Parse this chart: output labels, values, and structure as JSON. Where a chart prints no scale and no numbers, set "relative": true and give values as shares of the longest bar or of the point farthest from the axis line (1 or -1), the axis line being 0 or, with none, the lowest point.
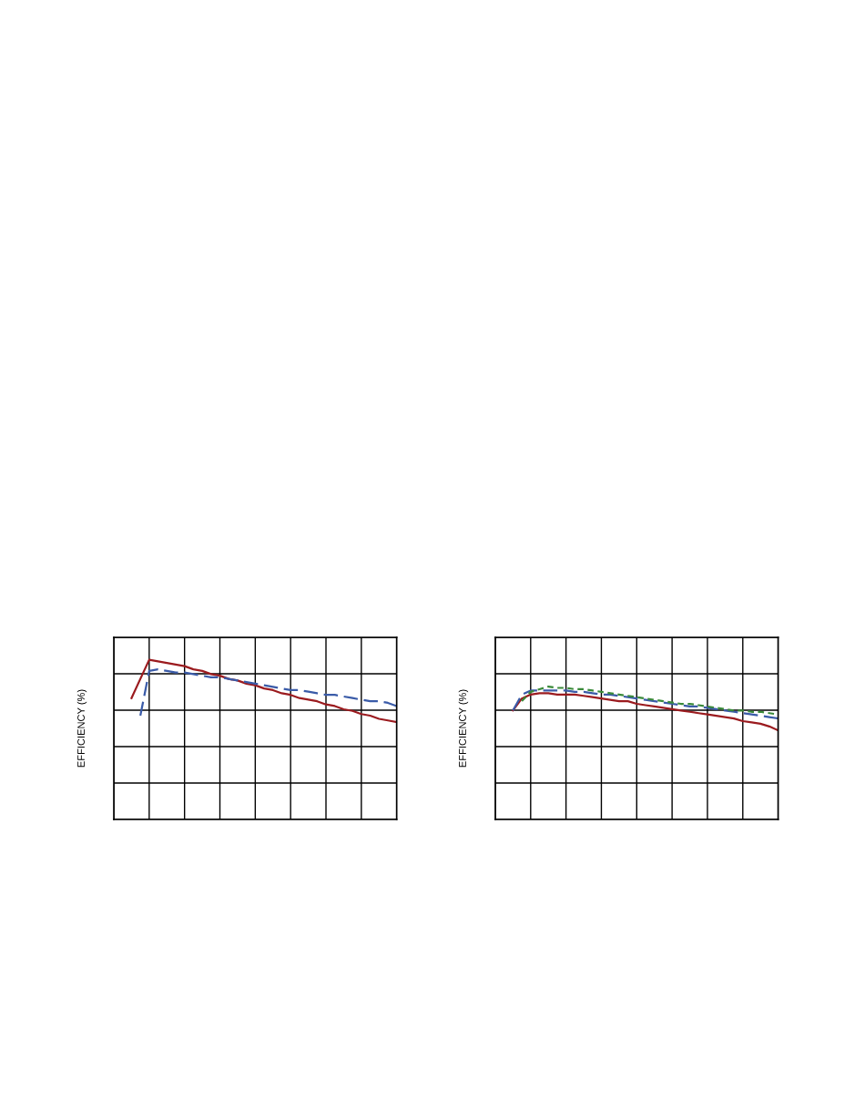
{
  "chart_data": [
    {
      "type": "line",
      "ylabel": "EFFICIENCY (%)",
      "relative": true,
      "grid": true,
      "marker": "none",
      "categories": [
        null,
        null,
        null,
        null,
        null,
        null,
        null,
        null,
        null,
        null,
        null,
        null,
        null,
        null,
        null,
        null,
        null,
        null,
        null,
        null,
        null,
        null,
        null,
        null,
        null,
        null,
        null,
        null,
        null,
        null,
        null,
        null,
        null
      ],
      "series": [
        {
          "color": "#9b1b1f",
          "line_style": "solid",
          "values": [
            null,
            null,
            0.76,
            0.88,
            1.0,
            0.99,
            0.98,
            0.97,
            0.96,
            0.94,
            0.93,
            0.91,
            0.9,
            0.88,
            0.87,
            0.85,
            0.84,
            0.82,
            0.81,
            0.79,
            0.78,
            0.76,
            0.75,
            0.74,
            0.72,
            0.71,
            0.69,
            0.68,
            0.66,
            0.65,
            0.63,
            0.62,
            0.61
          ]
        },
        {
          "color": "#3a5ba8",
          "line_style": "dashed",
          "values": [
            null,
            null,
            null,
            0.65,
            0.93,
            0.94,
            0.93,
            0.92,
            0.92,
            0.91,
            0.9,
            0.89,
            0.89,
            0.88,
            0.87,
            0.86,
            0.85,
            0.84,
            0.83,
            0.82,
            0.81,
            0.81,
            0.8,
            0.79,
            0.78,
            0.78,
            0.77,
            0.76,
            0.75,
            0.74,
            0.74,
            0.73,
            0.71
          ]
        }
      ]
    },
    {
      "type": "line",
      "ylabel": "EFFICIENCY (%)",
      "relative": true,
      "grid": true,
      "marker": "none",
      "categories": [
        null,
        null,
        null,
        null,
        null,
        null,
        null,
        null,
        null,
        null,
        null,
        null,
        null,
        null,
        null,
        null,
        null,
        null,
        null,
        null,
        null,
        null,
        null,
        null,
        null,
        null,
        null,
        null,
        null,
        null,
        null,
        null,
        null
      ],
      "series": [
        {
          "color": "#9b1b1f",
          "line_style": "solid",
          "values": [
            null,
            null,
            0.82,
            0.91,
            0.94,
            0.95,
            0.95,
            0.94,
            0.94,
            0.94,
            0.93,
            0.92,
            0.91,
            0.9,
            0.89,
            0.89,
            0.87,
            0.86,
            0.85,
            0.84,
            0.83,
            0.82,
            0.81,
            0.8,
            0.79,
            0.78,
            0.77,
            0.76,
            0.74,
            0.73,
            0.72,
            0.7,
            0.67
          ]
        },
        {
          "color": "#3a5ba8",
          "line_style": "dashed",
          "values": [
            null,
            null,
            0.82,
            0.94,
            0.97,
            0.97,
            0.97,
            0.97,
            0.97,
            0.96,
            0.96,
            0.95,
            0.94,
            0.94,
            0.93,
            0.92,
            0.91,
            0.9,
            0.89,
            0.88,
            0.87,
            0.86,
            0.85,
            0.85,
            0.84,
            0.83,
            0.82,
            0.81,
            0.8,
            0.79,
            0.78,
            0.77,
            0.76
          ]
        },
        {
          "color": "#3a8a3a",
          "line_style": "dotted",
          "values": [
            null,
            null,
            null,
            0.89,
            0.96,
            0.98,
            1.0,
            0.99,
            0.99,
            0.98,
            0.98,
            0.97,
            0.96,
            0.95,
            0.94,
            0.93,
            0.92,
            0.91,
            0.9,
            0.89,
            0.88,
            0.87,
            0.87,
            0.86,
            0.85,
            0.84,
            0.83,
            0.82,
            0.82,
            0.81,
            0.81,
            0.8,
            0.79
          ]
        }
      ]
    }
  ]
}
